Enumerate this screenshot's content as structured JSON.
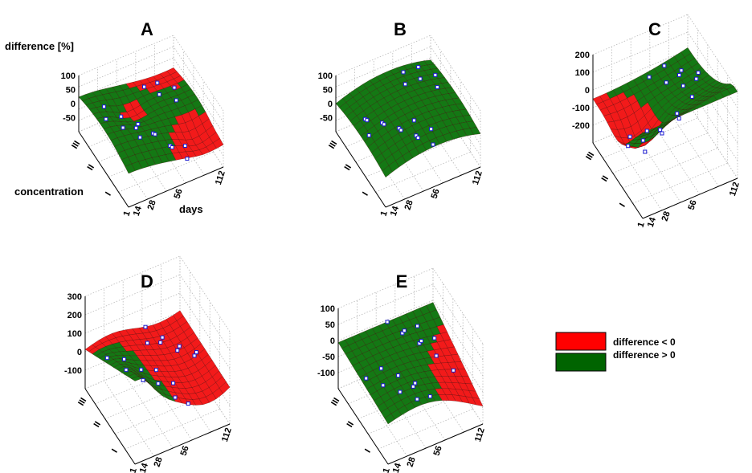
{
  "chart_data": [
    {
      "type": "surface",
      "panel": "A",
      "title": "A",
      "zlabel": "difference [%]",
      "xlabel": "days",
      "ylabel": "concentration",
      "z_ticks": [
        "100",
        "50",
        "0",
        "-50"
      ],
      "x_ticks": [
        "1",
        "14",
        "28",
        "56",
        "112"
      ],
      "y_ticks": [
        "III",
        "II",
        "I"
      ],
      "z_range": [
        -100,
        100
      ],
      "grid": true
    },
    {
      "type": "surface",
      "panel": "B",
      "title": "B",
      "z_ticks": [
        "100",
        "50",
        "0",
        "-50"
      ],
      "x_ticks": [
        "1",
        "14",
        "28",
        "56",
        "112"
      ],
      "y_ticks": [
        "III",
        "II",
        "I"
      ],
      "z_range": [
        -100,
        100
      ],
      "grid": true
    },
    {
      "type": "surface",
      "panel": "C",
      "title": "C",
      "z_ticks": [
        "200",
        "100",
        "0",
        "-100",
        "-200"
      ],
      "x_ticks": [
        "1",
        "14",
        "28",
        "56",
        "112"
      ],
      "y_ticks": [
        "III",
        "II",
        "I"
      ],
      "z_range": [
        -200,
        200
      ],
      "grid": true
    },
    {
      "type": "surface",
      "panel": "D",
      "title": "D",
      "z_ticks": [
        "300",
        "200",
        "100",
        "0",
        "-100"
      ],
      "x_ticks": [
        "1",
        "14",
        "28",
        "56",
        "112"
      ],
      "y_ticks": [
        "III",
        "II",
        "I"
      ],
      "z_range": [
        -100,
        300
      ],
      "grid": true
    },
    {
      "type": "surface",
      "panel": "E",
      "title": "E",
      "z_ticks": [
        "100",
        "50",
        "0",
        "-50",
        "-100"
      ],
      "x_ticks": [
        "1",
        "14",
        "28",
        "56",
        "112"
      ],
      "y_ticks": [
        "III",
        "II",
        "I"
      ],
      "z_range": [
        -100,
        100
      ],
      "grid": true
    }
  ],
  "legend": {
    "items": [
      {
        "label": "difference < 0",
        "color": "#ff0000"
      },
      {
        "label": "difference > 0",
        "color": "#006400"
      }
    ]
  }
}
